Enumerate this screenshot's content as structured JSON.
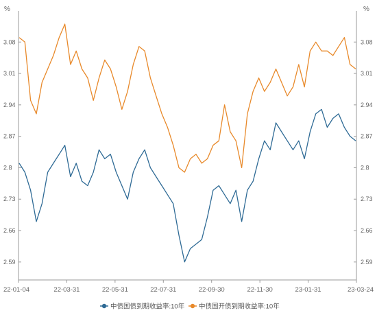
{
  "chart_data": {
    "type": "line",
    "title": "",
    "y_unit_left": "%",
    "y_unit_right": "%",
    "ylim": [
      2.55,
      3.14
    ],
    "grid": false,
    "legend_placement": "bottom-center",
    "y_ticks": [
      "3.08",
      "3.01",
      "2.94",
      "2.87",
      "2.8",
      "2.73",
      "2.66",
      "2.59"
    ],
    "x_ticks": [
      "22-01-04",
      "22-03-31",
      "22-05-31",
      "22-07-31",
      "22-09-30",
      "22-11-30",
      "23-01-31",
      "23-03-24"
    ],
    "x": [
      "22-01-04",
      "22-01-14",
      "22-01-21",
      "22-01-28",
      "22-02-10",
      "22-02-18",
      "22-02-25",
      "22-03-04",
      "22-03-11",
      "22-03-18",
      "22-03-25",
      "22-03-31",
      "22-04-08",
      "22-04-15",
      "22-04-22",
      "22-04-29",
      "22-05-06",
      "22-05-13",
      "22-05-20",
      "22-05-31",
      "22-06-10",
      "22-06-17",
      "22-06-24",
      "22-06-30",
      "22-07-08",
      "22-07-15",
      "22-07-22",
      "22-07-31",
      "22-08-05",
      "22-08-12",
      "22-08-19",
      "22-08-26",
      "22-09-02",
      "22-09-09",
      "22-09-16",
      "22-09-23",
      "22-09-30",
      "22-10-14",
      "22-10-21",
      "22-10-28",
      "22-11-04",
      "22-11-11",
      "22-11-18",
      "22-11-25",
      "22-11-30",
      "22-12-09",
      "22-12-16",
      "22-12-23",
      "22-12-30",
      "23-01-06",
      "23-01-13",
      "23-01-20",
      "23-01-31",
      "23-02-10",
      "23-02-17",
      "23-02-24",
      "23-03-03",
      "23-03-10",
      "23-03-17",
      "23-03-24"
    ],
    "series": [
      {
        "name": "中债国债到期收益率:10年",
        "color": "#2e6a95",
        "values": [
          2.81,
          2.79,
          2.75,
          2.68,
          2.72,
          2.79,
          2.81,
          2.83,
          2.85,
          2.78,
          2.81,
          2.77,
          2.76,
          2.79,
          2.84,
          2.82,
          2.83,
          2.79,
          2.76,
          2.73,
          2.79,
          2.82,
          2.84,
          2.8,
          2.78,
          2.76,
          2.74,
          2.72,
          2.65,
          2.59,
          2.62,
          2.63,
          2.64,
          2.69,
          2.75,
          2.76,
          2.74,
          2.72,
          2.75,
          2.68,
          2.75,
          2.77,
          2.82,
          2.86,
          2.84,
          2.9,
          2.88,
          2.86,
          2.84,
          2.86,
          2.82,
          2.88,
          2.92,
          2.93,
          2.89,
          2.91,
          2.92,
          2.89,
          2.87,
          2.86
        ]
      },
      {
        "name": "中债国开债到期收益率:10年",
        "color": "#e8892a",
        "values": [
          3.09,
          3.08,
          2.95,
          2.92,
          2.99,
          3.02,
          3.05,
          3.09,
          3.12,
          3.03,
          3.06,
          3.02,
          3.0,
          2.95,
          3.0,
          3.04,
          3.02,
          2.98,
          2.93,
          2.97,
          3.03,
          3.07,
          3.06,
          3.0,
          2.96,
          2.92,
          2.89,
          2.85,
          2.8,
          2.79,
          2.82,
          2.83,
          2.81,
          2.82,
          2.85,
          2.86,
          2.94,
          2.88,
          2.86,
          2.8,
          2.92,
          2.97,
          3.0,
          2.97,
          2.99,
          3.02,
          2.99,
          2.96,
          2.98,
          3.03,
          2.98,
          3.06,
          3.08,
          3.06,
          3.06,
          3.05,
          3.07,
          3.09,
          3.03,
          3.02
        ]
      }
    ]
  }
}
